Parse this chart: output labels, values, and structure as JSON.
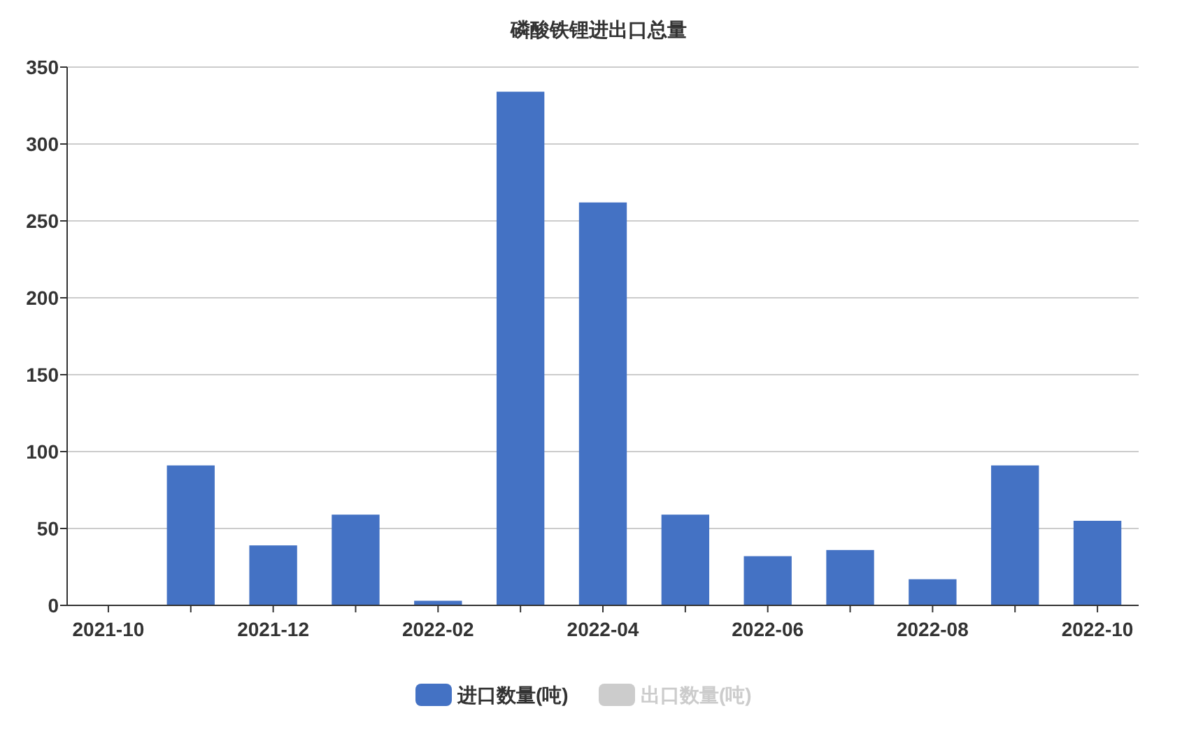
{
  "chart_data": {
    "type": "bar",
    "title": "磷酸铁锂进出口总量",
    "categories": [
      "2021-10",
      null,
      "2021-12",
      null,
      "2022-02",
      null,
      "2022-04",
      null,
      "2022-06",
      null,
      "2022-08",
      null,
      "2022-10"
    ],
    "series": [
      {
        "name": "进口数量(吨)",
        "color": "#4472c4",
        "values": [
          null,
          91,
          39,
          59,
          3,
          334,
          262,
          59,
          32,
          36,
          17,
          91,
          55
        ]
      },
      {
        "name": "出口数量(吨)",
        "color": "#cccccc",
        "values": [
          null,
          null,
          null,
          null,
          null,
          null,
          null,
          null,
          null,
          null,
          null,
          null,
          null
        ]
      }
    ],
    "ylim": [
      0,
      350
    ],
    "yticks": [
      0,
      50,
      100,
      150,
      200,
      250,
      300,
      350
    ],
    "grid": "y",
    "legend": "bottom"
  }
}
